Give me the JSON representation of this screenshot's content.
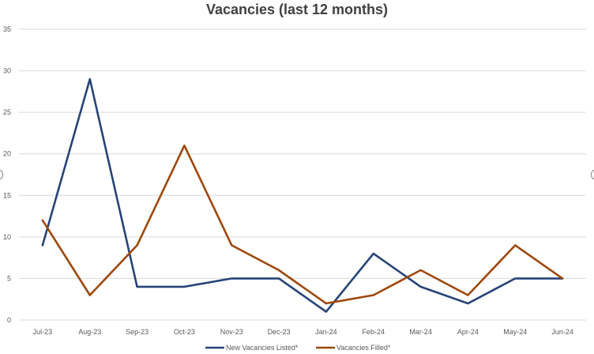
{
  "chart_data": {
    "type": "line",
    "title": "Vacancies (last 12 months)",
    "xlabel": "",
    "ylabel": "",
    "categories": [
      "Jul-23",
      "Aug-23",
      "Sep-23",
      "Oct-23",
      "Nov-23",
      "Dec-23",
      "Jan-24",
      "Feb-24",
      "Mar-24",
      "Apr-24",
      "May-24",
      "Jun-24"
    ],
    "ylim": [
      0,
      35
    ],
    "yticks": [
      "0",
      "5",
      "10",
      "15",
      "20",
      "25",
      "30",
      "35"
    ],
    "grid": true,
    "legend_position": "bottom",
    "series": [
      {
        "name": "New Vacancies Listed*",
        "color": "#264478",
        "values": [
          9,
          29,
          4,
          4,
          5,
          5,
          1,
          8,
          4,
          2,
          5,
          5
        ]
      },
      {
        "name": "Vacancies Filled*",
        "color": "#9E480E",
        "values": [
          12,
          3,
          9,
          21,
          9,
          6,
          2,
          3,
          6,
          3,
          9,
          5
        ]
      }
    ]
  }
}
